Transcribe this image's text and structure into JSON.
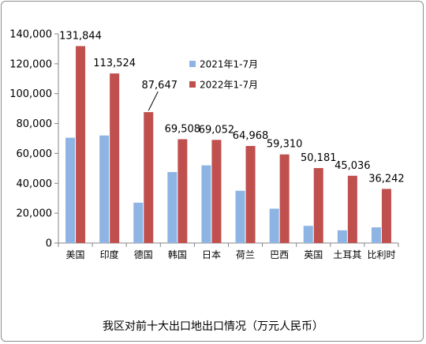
{
  "chart_data": {
    "type": "bar",
    "title": "我区对前十大出口地出口情况（万元人民币）",
    "categories": [
      "美国",
      "印度",
      "德国",
      "韩国",
      "日本",
      "荷兰",
      "巴西",
      "英国",
      "土耳其",
      "比利时"
    ],
    "series": [
      {
        "name": "2021年1-7月",
        "color": "#8eb4e3",
        "values": [
          70500,
          72000,
          27000,
          47500,
          52000,
          35000,
          23000,
          11500,
          8500,
          10500
        ]
      },
      {
        "name": "2022年1-7月",
        "color": "#c0504d",
        "values": [
          131844,
          113524,
          87647,
          69508,
          69052,
          64968,
          59310,
          50181,
          45036,
          36242
        ],
        "labels": [
          "131,844",
          "113,524",
          "87,647",
          "69,508",
          "69,052",
          "64,968",
          "59,310",
          "50,181",
          "45,036",
          "36,242"
        ]
      }
    ],
    "ylim": [
      0,
      140000
    ],
    "yticks": [
      0,
      20000,
      40000,
      60000,
      80000,
      100000,
      120000,
      140000
    ],
    "ytick_labels": [
      "0",
      "20,000",
      "40,000",
      "60,000",
      "80,000",
      "100,000",
      "120,000",
      "140,000"
    ],
    "grid": false,
    "legend": "top-right"
  }
}
